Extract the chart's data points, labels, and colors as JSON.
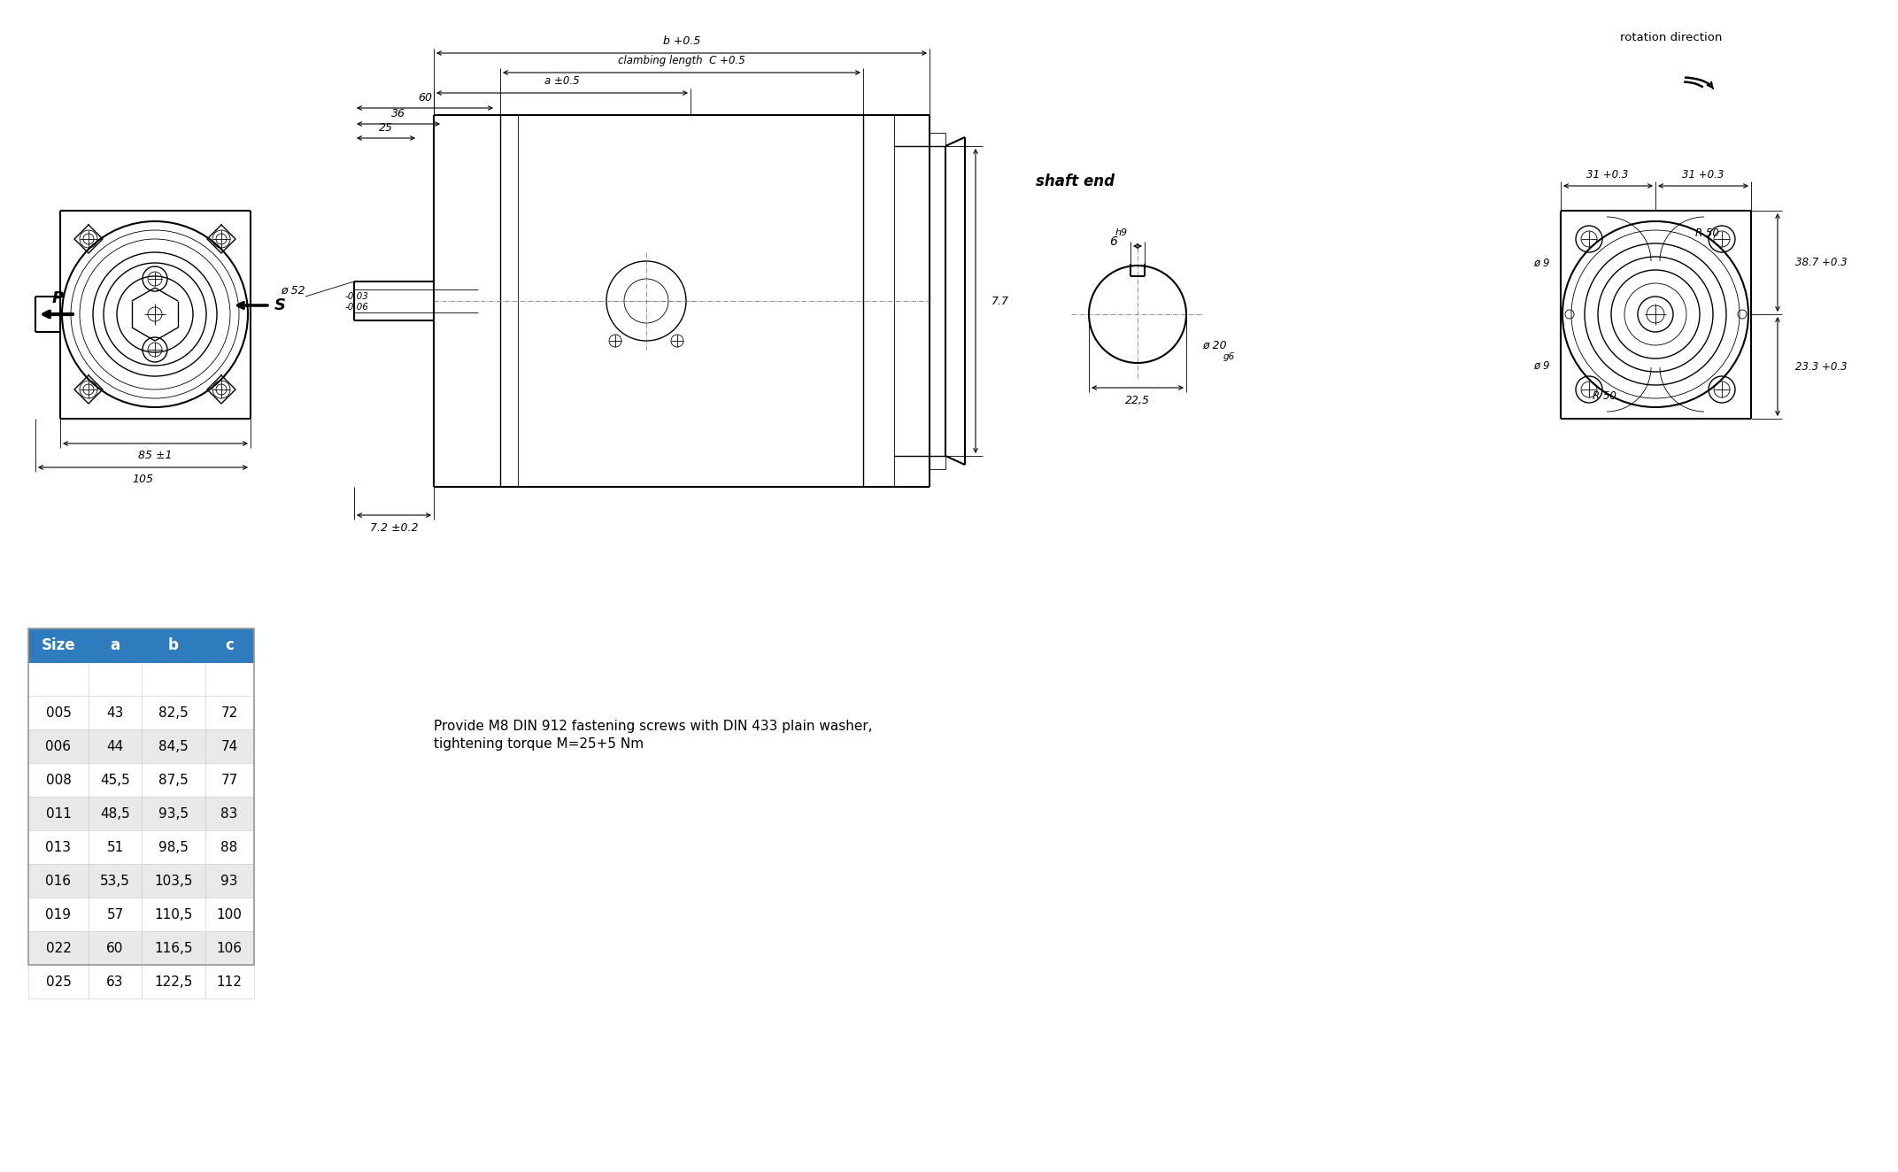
{
  "table_header": [
    "Size",
    "a",
    "b",
    "c"
  ],
  "table_data": [
    [
      "005",
      "43",
      "82,5",
      "72"
    ],
    [
      "006",
      "44",
      "84,5",
      "74"
    ],
    [
      "008",
      "45,5",
      "87,5",
      "77"
    ],
    [
      "011",
      "48,5",
      "93,5",
      "83"
    ],
    [
      "013",
      "51",
      "98,5",
      "88"
    ],
    [
      "016",
      "53,5",
      "103,5",
      "93"
    ],
    [
      "019",
      "57",
      "110,5",
      "100"
    ],
    [
      "022",
      "60",
      "116,5",
      "106"
    ],
    [
      "025",
      "63",
      "122,5",
      "112"
    ]
  ],
  "header_color": "#2e7bbe",
  "alt_row_color": "#e9e9e9",
  "white_row_color": "#ffffff",
  "note_line1": "Provide M8 DIN 912 fastening screws with DIN 433 plain washer,",
  "note_line2": "tightening torque M=25+5 Nm",
  "rotation_direction_text": "rotation direction",
  "bg_color": "#ffffff",
  "dim_labels": {
    "b_label": "b +0.5",
    "clambing": "clambing length  C +0.5",
    "a_label": "a ±0.5",
    "d60": "60",
    "d36": "36",
    "d25": "25",
    "d52": "ø 52",
    "d52tol": "-0.03\n-0.06",
    "d72": "7.2 ±0.2",
    "d77": "7.7",
    "d85": "85 ±1",
    "d105": "105",
    "shaft_end": "shaft end",
    "d6b9": "6",
    "h9": "h9",
    "d22_5": "22,5",
    "d20": "ø 20",
    "g6": "g6",
    "r31_1": "31 +0.3",
    "r31_2": "31 +0.3",
    "r38_7": "38.7 +0.3",
    "r23_3": "23.3 +0.3",
    "r50_1": "R 50",
    "r50_2": "R 50",
    "phi9_1": "ø 9",
    "phi9_2": "ø 9"
  }
}
